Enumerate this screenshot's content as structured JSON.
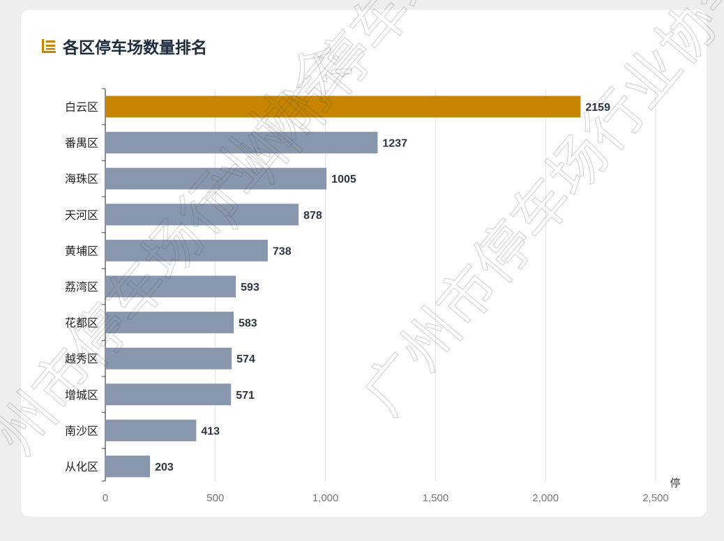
{
  "header": {
    "title": "各区停车场数量排名"
  },
  "colors": {
    "highlight_bar": "#c68400",
    "bar": "#8896ae",
    "title_icon": "#c68400",
    "grid": "#e3e3e3"
  },
  "watermark": [
    "广州市停车场行业协会",
    "广州市停车场行业协会",
    "广州市停车场行业协会"
  ],
  "chart_data": {
    "type": "bar",
    "orientation": "horizontal",
    "categories": [
      "白云区",
      "番禺区",
      "海珠区",
      "天河区",
      "黄埔区",
      "荔湾区",
      "花都区",
      "越秀区",
      "增城区",
      "南沙区",
      "从化区"
    ],
    "values": [
      2159,
      1237,
      1005,
      878,
      738,
      593,
      583,
      574,
      571,
      413,
      203
    ],
    "value_labels": [
      "2159",
      "1237",
      "1005",
      "878",
      "738",
      "593",
      "583",
      "574",
      "571",
      "413",
      "203"
    ],
    "highlight_index": 0,
    "xlim": [
      0,
      2500
    ],
    "xticks": [
      0,
      500,
      1000,
      1500,
      2000,
      2500
    ],
    "xtick_labels": [
      "0",
      "500",
      "1,000",
      "1,500",
      "2,000",
      "2,500"
    ],
    "xlabel": "停",
    "grid": true
  }
}
